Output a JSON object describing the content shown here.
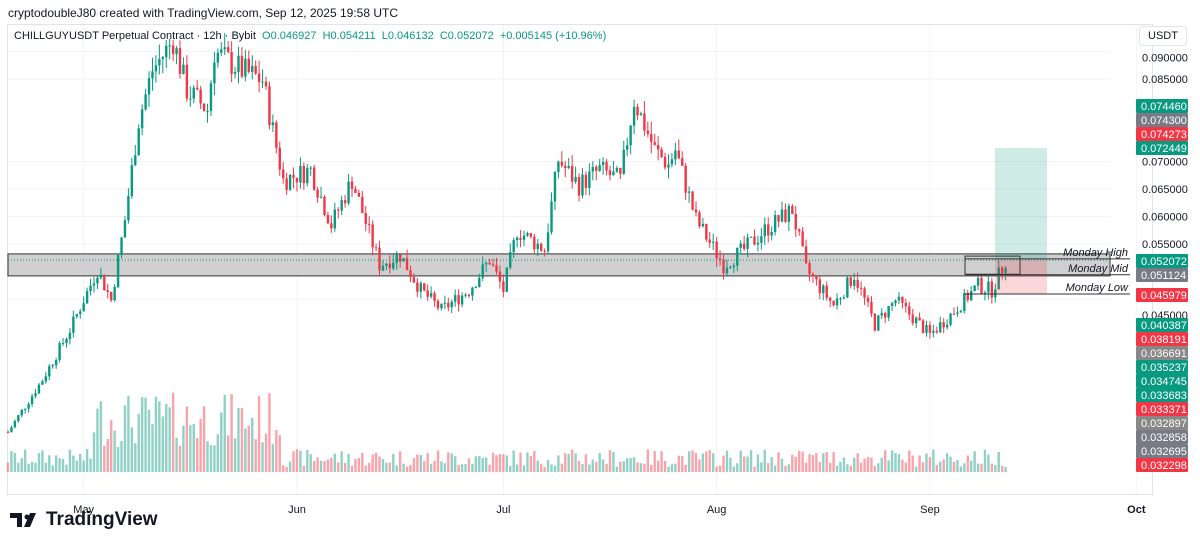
{
  "credit": "cryptodoubleJ80 created with TradingView.com, Sep 12, 2025 19:58 UTC",
  "legend": {
    "symbol": "CHILLGUYUSDT Perpetual Contract · 12h · Bybit",
    "o": "O0.046927",
    "h": "H0.054211",
    "l": "L0.046132",
    "c": "C0.052072",
    "change": "+0.005145 (+10.96%)"
  },
  "currency_button": "USDT",
  "brand": "TradingView",
  "colors": {
    "up": "#089981",
    "down": "#f23645",
    "gray": "#787b86",
    "zone": "#c8c8c8"
  },
  "chart_data": {
    "type": "candlestick",
    "x_ticks": [
      "May",
      "Jun",
      "Jul",
      "Aug",
      "Sep",
      "Oct"
    ],
    "y_ticks": [
      "0.090000",
      "0.085000",
      "0.070000",
      "0.065000",
      "0.060000",
      "0.055000",
      "0.045000"
    ],
    "close_waypoints": [
      [
        "Apr 20",
        0.0208
      ],
      [
        "Apr 25",
        0.0303
      ],
      [
        "Apr 29",
        0.0394
      ],
      [
        "May 3",
        0.0503
      ],
      [
        "May 5",
        0.0448
      ],
      [
        "May 7",
        0.0594
      ],
      [
        "May 9",
        0.0775
      ],
      [
        "May 11",
        0.0866
      ],
      [
        "May 14",
        0.092
      ],
      [
        "May 16",
        0.083
      ],
      [
        "May 19",
        0.0794
      ],
      [
        "May 20",
        0.09
      ],
      [
        "May 24",
        0.0866
      ],
      [
        "May 27",
        0.0848
      ],
      [
        "May 30",
        0.0666
      ],
      [
        "Jun 3",
        0.0685
      ],
      [
        "Jun 6",
        0.0585
      ],
      [
        "Jun 9",
        0.0666
      ],
      [
        "Jun 13",
        0.0512
      ],
      [
        "Jun 16",
        0.053
      ],
      [
        "Jun 19",
        0.0466
      ],
      [
        "Jun 22",
        0.043
      ],
      [
        "Jun 26",
        0.0466
      ],
      [
        "Jun 29",
        0.0521
      ],
      [
        "Jul 1",
        0.0466
      ],
      [
        "Jul 3",
        0.0575
      ],
      [
        "Jul 7",
        0.054
      ],
      [
        "Jul 9",
        0.0703
      ],
      [
        "Jul 12",
        0.0657
      ],
      [
        "Jul 15",
        0.0685
      ],
      [
        "Jul 18",
        0.0666
      ],
      [
        "Jul 20",
        0.0812
      ],
      [
        "Jul 23",
        0.0721
      ],
      [
        "Jul 25",
        0.0694
      ],
      [
        "Jul 26",
        0.0721
      ],
      [
        "Jul 29",
        0.0594
      ],
      [
        "Aug 2",
        0.0512
      ],
      [
        "Aug 5",
        0.054
      ],
      [
        "Aug 8",
        0.0575
      ],
      [
        "Aug 12",
        0.0612
      ],
      [
        "Aug 14",
        0.0503
      ],
      [
        "Aug 18",
        0.0439
      ],
      [
        "Aug 21",
        0.0494
      ],
      [
        "Aug 24",
        0.0403
      ],
      [
        "Aug 27",
        0.0448
      ],
      [
        "Sep 1",
        0.0385
      ],
      [
        "Sep 4",
        0.0421
      ],
      [
        "Sep 8",
        0.0475
      ],
      [
        "Sep 10",
        0.0466
      ],
      [
        "Sep 12",
        0.0521
      ]
    ],
    "current_price": 0.052072,
    "zone": {
      "top": 0.0532,
      "bottom": 0.0492
    },
    "position": {
      "target": 0.072449,
      "entry": 0.052072,
      "stop": 0.045979
    },
    "levels": [
      {
        "label": "Monday High",
        "price": 0.0523
      },
      {
        "label": "Monday Mid",
        "price": 0.0494
      },
      {
        "label": "Monday Low",
        "price": 0.0459
      }
    ],
    "price_labels": [
      {
        "v": "0.074460",
        "c": "#089981"
      },
      {
        "v": "0.074300",
        "c": "#787b86"
      },
      {
        "v": "0.074273",
        "c": "#f23645"
      },
      {
        "v": "0.072449",
        "c": "#089981"
      },
      {
        "v": "0.052072",
        "c": "#089981"
      },
      {
        "v": "0.051124",
        "c": "#787b86"
      },
      {
        "v": "0.045979",
        "c": "#f23645"
      },
      {
        "v": "0.040387",
        "c": "#089981"
      },
      {
        "v": "0.038191",
        "c": "#f23645"
      },
      {
        "v": "0.036691",
        "c": "#888888"
      },
      {
        "v": "0.035237",
        "c": "#089981"
      },
      {
        "v": "0.034745",
        "c": "#089981"
      },
      {
        "v": "0.033683",
        "c": "#089981"
      },
      {
        "v": "0.033371",
        "c": "#f23645"
      },
      {
        "v": "0.032897",
        "c": "#888888"
      },
      {
        "v": "0.032858",
        "c": "#787b86"
      },
      {
        "v": "0.032695",
        "c": "#787b86"
      },
      {
        "v": "0.032298",
        "c": "#f23645"
      }
    ]
  }
}
